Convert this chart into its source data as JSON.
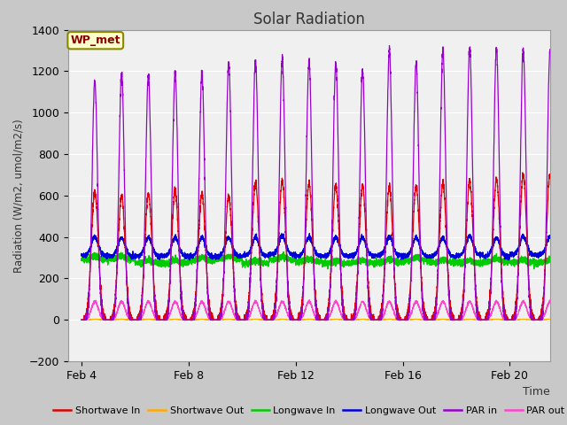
{
  "title": "Solar Radiation",
  "ylabel": "Radiation (W/m2, umol/m2/s)",
  "xlabel": "Time",
  "xlim_days": [
    3.5,
    21.5
  ],
  "ylim": [
    -200,
    1400
  ],
  "yticks": [
    -200,
    0,
    200,
    400,
    600,
    800,
    1000,
    1200,
    1400
  ],
  "xtick_positions": [
    4,
    8,
    12,
    16,
    20
  ],
  "xtick_labels": [
    "Feb 4",
    "Feb 8",
    "Feb 12",
    "Feb 16",
    "Feb 20"
  ],
  "fig_bg_color": "#c8c8c8",
  "plot_bg_color": "#e0e0e0",
  "inner_plot_color": "#f0f0f0",
  "legend_label": "WP_met",
  "series_colors": {
    "shortwave_in": "#dd0000",
    "shortwave_out": "#ffaa00",
    "longwave_in": "#00cc00",
    "longwave_out": "#0000dd",
    "par_in": "#9900cc",
    "par_out": "#ff44cc"
  },
  "legend_entries": [
    {
      "label": "Shortwave In",
      "color": "#dd0000"
    },
    {
      "label": "Shortwave Out",
      "color": "#ffaa00"
    },
    {
      "label": "Longwave In",
      "color": "#00cc00"
    },
    {
      "label": "Longwave Out",
      "color": "#0000dd"
    },
    {
      "label": "PAR in",
      "color": "#9900cc"
    },
    {
      "label": "PAR out",
      "color": "#ff44cc"
    }
  ],
  "n_days": 18,
  "start_day": 4,
  "samples_per_day": 288
}
